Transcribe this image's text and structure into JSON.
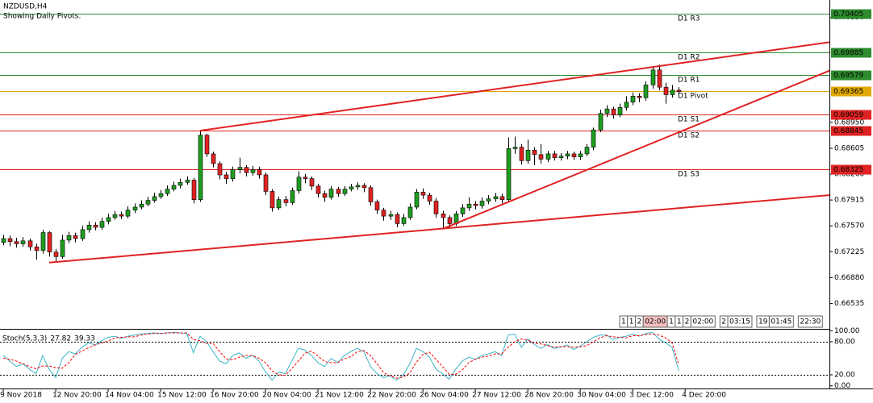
{
  "chart_data": [
    {
      "type": "candlestick",
      "title": "NZDUSD,H4",
      "subtitle": "Showing Daily Pivots.",
      "xlim": [
        -0.5,
        126
      ],
      "ylim": [
        0.66196,
        0.70583
      ],
      "xticks": [
        {
          "value": 0,
          "label": "9 Nov 2018"
        },
        {
          "value": 8,
          "label": "12 Nov 20:00"
        },
        {
          "value": 16,
          "label": "14 Nov 04:00"
        },
        {
          "value": 24,
          "label": "15 Nov 12:00"
        },
        {
          "value": 32,
          "label": "16 Nov 20:00"
        },
        {
          "value": 40,
          "label": "20 Nov 04:00"
        },
        {
          "value": 48,
          "label": "21 Nov 12:00"
        },
        {
          "value": 56,
          "label": "22 Nov 20:00"
        },
        {
          "value": 64,
          "label": "26 Nov 04:00"
        },
        {
          "value": 72,
          "label": "27 Nov 12:00"
        },
        {
          "value": 80,
          "label": "28 Nov 20:00"
        },
        {
          "value": 88,
          "label": "30 Nov 04:00"
        },
        {
          "value": 96,
          "label": "3 Dec 12:00"
        },
        {
          "value": 104,
          "label": "4 Dec 20:00"
        }
      ],
      "yticks": [
        {
          "value": 0.7035,
          "label": "0.70350"
        },
        {
          "value": 0.6895,
          "label": "0.68950"
        },
        0.68605,
        {
          "value": 0.6826,
          "label": "0.68260"
        },
        0.67915,
        {
          "value": 0.6757,
          "label": "0.67570"
        },
        0.67225,
        {
          "value": 0.6688,
          "label": "0.66880"
        },
        0.66535
      ],
      "up_color": "#1e9e1e",
      "down_color": "#e02222",
      "open": [
        0.6735,
        0.674,
        0.6736,
        0.6733,
        0.6737,
        0.6729,
        0.6724,
        0.6748,
        0.6722,
        0.6716,
        0.6738,
        0.6744,
        0.674,
        0.6752,
        0.6758,
        0.6755,
        0.6763,
        0.6768,
        0.6772,
        0.677,
        0.6778,
        0.6782,
        0.6786,
        0.6791,
        0.6796,
        0.68,
        0.6806,
        0.6811,
        0.6815,
        0.6818,
        0.6792,
        0.6878,
        0.6853,
        0.684,
        0.6825,
        0.682,
        0.6832,
        0.6835,
        0.6828,
        0.6832,
        0.6825,
        0.6803,
        0.6781,
        0.6792,
        0.6788,
        0.6804,
        0.6822,
        0.682,
        0.681,
        0.68,
        0.6795,
        0.6806,
        0.68,
        0.6806,
        0.6809,
        0.6811,
        0.6808,
        0.6789,
        0.6778,
        0.677,
        0.6772,
        0.676,
        0.6768,
        0.6782,
        0.6802,
        0.6798,
        0.679,
        0.6773,
        0.6768,
        0.676,
        0.6773,
        0.6781,
        0.6786,
        0.6784,
        0.679,
        0.6793,
        0.6796,
        0.6792,
        0.686,
        0.6862,
        0.6844,
        0.6858,
        0.6852,
        0.6846,
        0.6853,
        0.6848,
        0.685,
        0.6853,
        0.6849,
        0.6853,
        0.6862,
        0.6885,
        0.6907,
        0.6913,
        0.6905,
        0.6915,
        0.6922,
        0.693,
        0.6928,
        0.6945,
        0.6965,
        0.6942,
        0.6932,
        0.6938
      ],
      "high": [
        0.6745,
        0.6744,
        0.6741,
        0.6742,
        0.674,
        0.6733,
        0.6752,
        0.675,
        0.6726,
        0.6745,
        0.6749,
        0.6748,
        0.6757,
        0.6763,
        0.6762,
        0.6768,
        0.6773,
        0.6777,
        0.6776,
        0.6783,
        0.6787,
        0.6791,
        0.6796,
        0.6801,
        0.6805,
        0.6811,
        0.6816,
        0.682,
        0.6823,
        0.6821,
        0.6884,
        0.688,
        0.6856,
        0.6843,
        0.6829,
        0.6836,
        0.6848,
        0.6838,
        0.6837,
        0.6836,
        0.6828,
        0.6806,
        0.6796,
        0.6797,
        0.6808,
        0.683,
        0.6826,
        0.6823,
        0.6813,
        0.6804,
        0.681,
        0.6809,
        0.681,
        0.6813,
        0.6815,
        0.6814,
        0.6811,
        0.6792,
        0.6781,
        0.6777,
        0.6775,
        0.6773,
        0.6787,
        0.6806,
        0.6807,
        0.6801,
        0.6794,
        0.6777,
        0.6771,
        0.6777,
        0.6786,
        0.6795,
        0.679,
        0.6795,
        0.6798,
        0.6801,
        0.68,
        0.6875,
        0.6876,
        0.6866,
        0.6872,
        0.6862,
        0.6866,
        0.6857,
        0.6857,
        0.6854,
        0.6857,
        0.6856,
        0.6857,
        0.6866,
        0.6888,
        0.6912,
        0.6918,
        0.6916,
        0.692,
        0.693,
        0.6935,
        0.6934,
        0.695,
        0.697,
        0.6972,
        0.6948,
        0.6945,
        0.6942
      ],
      "low": [
        0.6731,
        0.673,
        0.6728,
        0.6729,
        0.6724,
        0.6712,
        0.672,
        0.6716,
        0.6708,
        0.6713,
        0.6734,
        0.6735,
        0.6737,
        0.6748,
        0.6751,
        0.6752,
        0.6759,
        0.6765,
        0.6766,
        0.6767,
        0.6774,
        0.6779,
        0.6783,
        0.6788,
        0.6793,
        0.6797,
        0.6803,
        0.6807,
        0.6812,
        0.6787,
        0.6789,
        0.6849,
        0.6835,
        0.6819,
        0.6813,
        0.6816,
        0.6827,
        0.6823,
        0.6824,
        0.682,
        0.6798,
        0.6776,
        0.6778,
        0.6783,
        0.6785,
        0.68,
        0.6814,
        0.6805,
        0.6795,
        0.6789,
        0.6792,
        0.6796,
        0.6797,
        0.6803,
        0.6805,
        0.6802,
        0.6784,
        0.6773,
        0.6764,
        0.6765,
        0.6755,
        0.6757,
        0.6765,
        0.6779,
        0.6793,
        0.6785,
        0.6768,
        0.6753,
        0.6754,
        0.6757,
        0.6769,
        0.6777,
        0.6779,
        0.678,
        0.6786,
        0.6789,
        0.6787,
        0.6789,
        0.6853,
        0.6839,
        0.684,
        0.6838,
        0.684,
        0.6842,
        0.6844,
        0.6844,
        0.6846,
        0.6845,
        0.6845,
        0.685,
        0.6858,
        0.6882,
        0.6902,
        0.69,
        0.6902,
        0.6911,
        0.6918,
        0.6922,
        0.6924,
        0.694,
        0.6938,
        0.692,
        0.6928,
        0.6932
      ],
      "close": [
        0.674,
        0.6736,
        0.6733,
        0.6737,
        0.6729,
        0.6724,
        0.6748,
        0.6722,
        0.6716,
        0.6738,
        0.6744,
        0.674,
        0.6752,
        0.6758,
        0.6755,
        0.6763,
        0.6768,
        0.6772,
        0.677,
        0.6778,
        0.6782,
        0.6786,
        0.6791,
        0.6796,
        0.68,
        0.6806,
        0.6811,
        0.6815,
        0.6818,
        0.6792,
        0.6878,
        0.6853,
        0.684,
        0.6825,
        0.682,
        0.6832,
        0.6835,
        0.6828,
        0.6832,
        0.6825,
        0.6803,
        0.6781,
        0.6792,
        0.6788,
        0.6804,
        0.6822,
        0.682,
        0.681,
        0.68,
        0.6795,
        0.6806,
        0.68,
        0.6806,
        0.6809,
        0.6811,
        0.6808,
        0.6789,
        0.6778,
        0.677,
        0.6772,
        0.676,
        0.6768,
        0.6782,
        0.6802,
        0.6798,
        0.679,
        0.6773,
        0.6768,
        0.676,
        0.6773,
        0.6781,
        0.6786,
        0.6784,
        0.679,
        0.6793,
        0.6796,
        0.6792,
        0.686,
        0.6862,
        0.6844,
        0.6858,
        0.6852,
        0.6846,
        0.6853,
        0.6848,
        0.685,
        0.6853,
        0.6849,
        0.6853,
        0.6862,
        0.6885,
        0.6907,
        0.6913,
        0.6905,
        0.6915,
        0.6922,
        0.693,
        0.6928,
        0.6945,
        0.6965,
        0.6942,
        0.6932,
        0.6938,
        0.6936
      ],
      "levels": [
        {
          "name": "D1 R3",
          "value": 0.70405,
          "color": "#2e8b2e"
        },
        {
          "name": "D1 R2",
          "value": 0.69885,
          "color": "#2e8b2e"
        },
        {
          "name": "D1 R1",
          "value": 0.69579,
          "color": "#2e8b2e"
        },
        {
          "name": "D1 Pivot",
          "value": 0.69365,
          "color": "#e0a800"
        },
        {
          "name": "D1 S1",
          "value": 0.69059,
          "color": "#e02222"
        },
        {
          "name": "D1 S2",
          "value": 0.68845,
          "color": "#e02222"
        },
        {
          "name": "D1 S3",
          "value": 0.68325,
          "color": "#e02222"
        }
      ],
      "trendline_color": "#e02222",
      "trendlines": [
        {
          "x": [
            7,
            126
          ],
          "y": [
            0.6708,
            0.6798
          ]
        },
        {
          "x": [
            67,
            126
          ],
          "y": [
            0.6753,
            0.6964
          ]
        },
        {
          "x": [
            30,
            126
          ],
          "y": [
            0.6884,
            0.7002
          ]
        }
      ],
      "annotations": [
        "1",
        "1",
        "2",
        "02:00",
        "1",
        "1",
        "2",
        "02:00",
        "2",
        "03:15",
        "19",
        "01:45",
        "22:30"
      ]
    },
    {
      "type": "line",
      "title": "Stoch(5,3,3)",
      "ylim": [
        0,
        100
      ],
      "yticks": [
        {
          "value": 100,
          "label": "100.00"
        },
        {
          "value": 80,
          "label": "80.00"
        },
        {
          "value": 20,
          "label": "20.00"
        },
        {
          "value": 0,
          "label": "0.00"
        }
      ],
      "levels": [
        80,
        20
      ],
      "series": [
        {
          "color": "#3cb4c8",
          "values": [
            55,
            45,
            35,
            40,
            30,
            22,
            55,
            30,
            15,
            50,
            62,
            58,
            70,
            78,
            74,
            82,
            88,
            90,
            86,
            90,
            92,
            94,
            95,
            96,
            95,
            96,
            97,
            96,
            95,
            60,
            90,
            80,
            62,
            45,
            40,
            55,
            60,
            50,
            55,
            45,
            25,
            10,
            25,
            22,
            45,
            68,
            65,
            55,
            42,
            35,
            50,
            42,
            55,
            62,
            68,
            62,
            35,
            22,
            15,
            18,
            10,
            20,
            40,
            68,
            62,
            52,
            30,
            22,
            12,
            30,
            45,
            52,
            48,
            55,
            58,
            62,
            55,
            92,
            94,
            70,
            85,
            75,
            68,
            75,
            68,
            70,
            74,
            66,
            72,
            80,
            88,
            92,
            92,
            84,
            88,
            90,
            94,
            90,
            95,
            97,
            85,
            78,
            70,
            27.82
          ]
        },
        {
          "color": "#ff0000",
          "dashed": true,
          "values": [
            50,
            48,
            45,
            40,
            35,
            31,
            36,
            36,
            33,
            32,
            42,
            57,
            63,
            69,
            74,
            78,
            81,
            87,
            88,
            89,
            89,
            92,
            94,
            95,
            95,
            96,
            96,
            96,
            96,
            84,
            82,
            77,
            77,
            62,
            49,
            47,
            52,
            55,
            55,
            50,
            42,
            27,
            20,
            19,
            31,
            45,
            59,
            63,
            54,
            44,
            42,
            42,
            49,
            53,
            62,
            64,
            55,
            40,
            24,
            18,
            14,
            16,
            23,
            43,
            57,
            61,
            48,
            35,
            21,
            21,
            29,
            42,
            48,
            52,
            54,
            58,
            58,
            70,
            80,
            85,
            83,
            77,
            76,
            73,
            70,
            71,
            71,
            70,
            71,
            73,
            80,
            87,
            91,
            89,
            88,
            87,
            91,
            91,
            93,
            94,
            92,
            87,
            78,
            39.33
          ]
        }
      ]
    }
  ]
}
